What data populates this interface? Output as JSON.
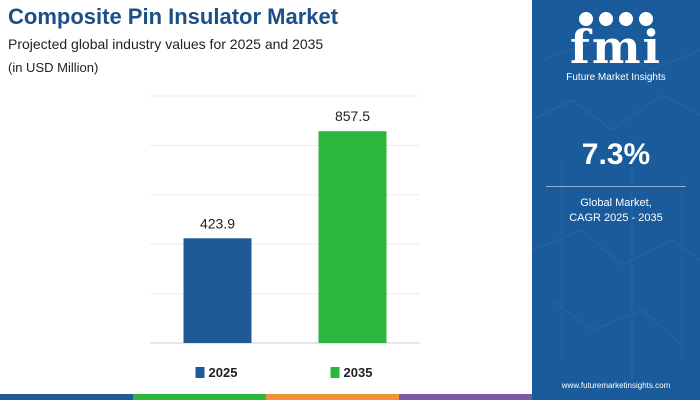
{
  "header": {
    "title": "Composite Pin Insulator Market",
    "subtitle": "Projected global industry values for 2025 and 2035",
    "unit": "(in USD Million)"
  },
  "chart_data": {
    "type": "bar",
    "categories": [
      "2025",
      "2035"
    ],
    "values": [
      423.9,
      857.5
    ],
    "value_labels": [
      "423.9",
      "857.5"
    ],
    "colors": [
      "#1f5a96",
      "#2db63e"
    ],
    "ylim": [
      0,
      1000
    ],
    "grid": true,
    "legend": "bottom"
  },
  "sidebar": {
    "logo_text": "fmi",
    "logo_subtitle": "Future Market Insights",
    "cagr_value": "7.3%",
    "cagr_label_line1": "Global Market,",
    "cagr_label_line2": "CAGR 2025 - 2035",
    "website": "www.futuremarketinsights.com",
    "background_color": "#1a5b9c"
  },
  "accent_colors": [
    "#1f5a96",
    "#2db63e",
    "#f0923a",
    "#7b5aa6"
  ]
}
